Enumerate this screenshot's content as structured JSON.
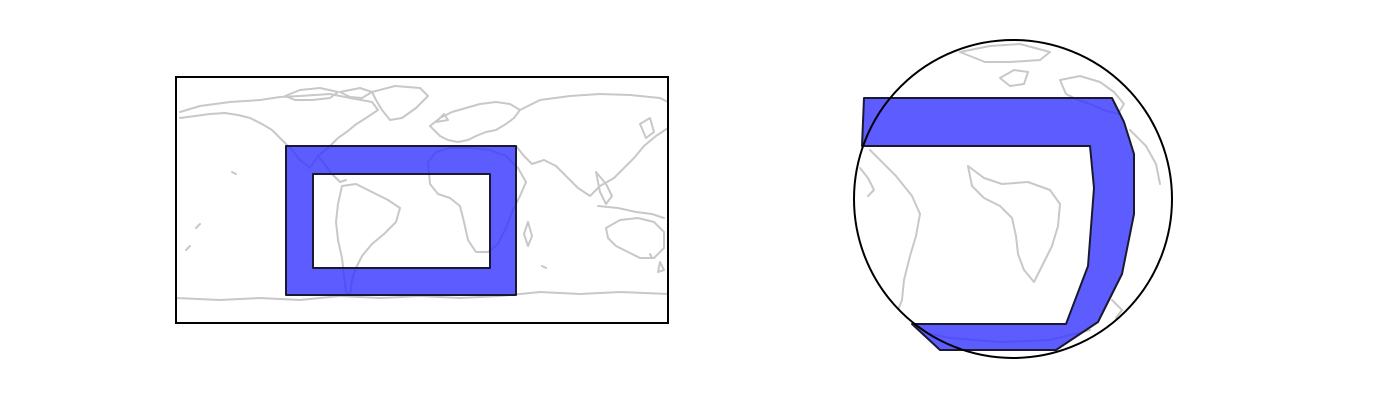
{
  "figure": {
    "panels": [
      {
        "projection": "plate-carree",
        "has_border_frame": true
      },
      {
        "projection": "orthographic",
        "has_border_frame": true
      }
    ],
    "polygon_color": "#3333ff",
    "polygon_opacity": 0.8,
    "coastline_color": "#c8c8c8",
    "frame_color": "#000000"
  }
}
